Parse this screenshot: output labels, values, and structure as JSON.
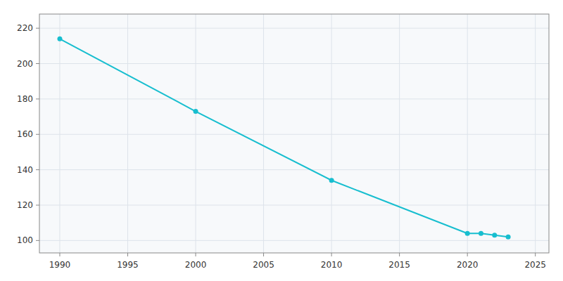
{
  "chart_data": {
    "type": "line",
    "x": [
      1990,
      2000,
      2010,
      2020,
      2021,
      2022,
      2023
    ],
    "values": [
      214,
      173,
      134,
      104,
      104,
      103,
      102
    ],
    "color": "#17BECF",
    "marker": "circle",
    "xlim": [
      1988.5,
      2026
    ],
    "ylim": [
      93,
      228
    ],
    "xticks": [
      1990,
      1995,
      2000,
      2005,
      2010,
      2015,
      2020,
      2025
    ],
    "yticks": [
      100,
      120,
      140,
      160,
      180,
      200,
      220
    ],
    "grid": true
  }
}
